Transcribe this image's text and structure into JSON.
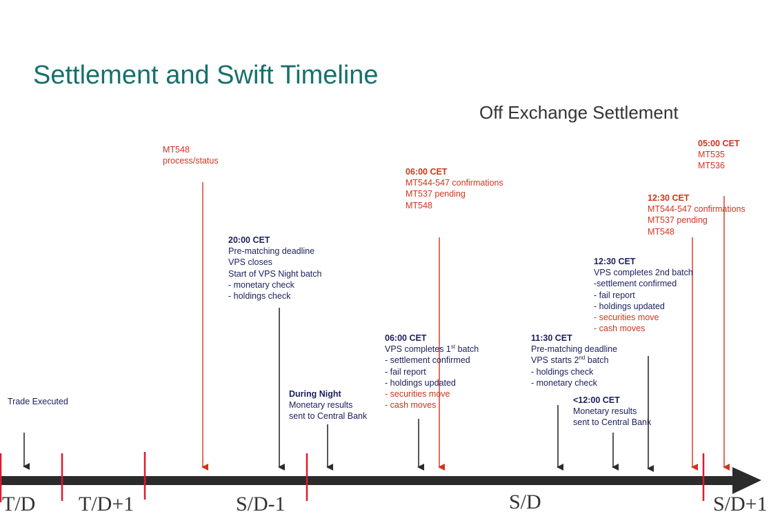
{
  "title": "Settlement and Swift Timeline",
  "subtitle": "Off Exchange Settlement",
  "colors": {
    "title": "#16706c",
    "navy": "#1a1f5c",
    "red": "#d0341c",
    "axis": "#2b2b2b",
    "divider": "#e0182d"
  },
  "periods": [
    {
      "label": "T/D"
    },
    {
      "label": "T/D+1"
    },
    {
      "label": "S/D-1"
    },
    {
      "label": "S/D"
    },
    {
      "label": "S/D+1"
    }
  ],
  "events": {
    "trade_executed": {
      "lines": [
        "Trade Executed"
      ]
    },
    "mt548_status": {
      "lines": [
        "MT548",
        "process/status"
      ]
    },
    "prematch_20": {
      "time": "20:00 CET",
      "lines": [
        "Pre-matching deadline",
        "VPS closes",
        "Start of VPS Night batch",
        "- monetary check",
        "- holdings check"
      ]
    },
    "during_night": {
      "time": "During Night",
      "lines": [
        "Monetary results",
        "sent to Central Bank"
      ]
    },
    "batch1_0600": {
      "time": "06:00 CET",
      "pre": "VPS completes 1",
      "sup": "st",
      "post": " batch",
      "lines": [
        "- settlement confirmed",
        "- fail report",
        "- holdings updated"
      ],
      "red_lines": [
        "- securities move",
        "- cash moves"
      ]
    },
    "swift_0600": {
      "time": "06:00 CET",
      "lines": [
        "MT544-547 confirmations",
        "MT537 pending",
        "MT548"
      ]
    },
    "batch2_1130": {
      "time": "11:30 CET",
      "line1": "Pre-matching deadline",
      "pre": "VPS starts 2",
      "sup": "nd",
      "post": " batch",
      "lines": [
        "- holdings check",
        "- monetary check"
      ]
    },
    "cb_1200": {
      "time": "<12:00 CET",
      "lines": [
        "Monetary results",
        "sent to Central Bank"
      ]
    },
    "batch2_1230": {
      "time": "12:30 CET",
      "lines": [
        "VPS completes 2nd batch",
        "-settlement confirmed",
        "- fail report",
        "- holdings updated"
      ],
      "red_lines": [
        "- securities move",
        "- cash moves"
      ]
    },
    "swift_1230": {
      "time": "12:30 CET",
      "lines": [
        "MT544-547 confirmations",
        "MT537 pending",
        "MT548"
      ]
    },
    "swift_0500": {
      "time": "05:00 CET",
      "lines": [
        "MT535",
        "MT536"
      ]
    }
  }
}
